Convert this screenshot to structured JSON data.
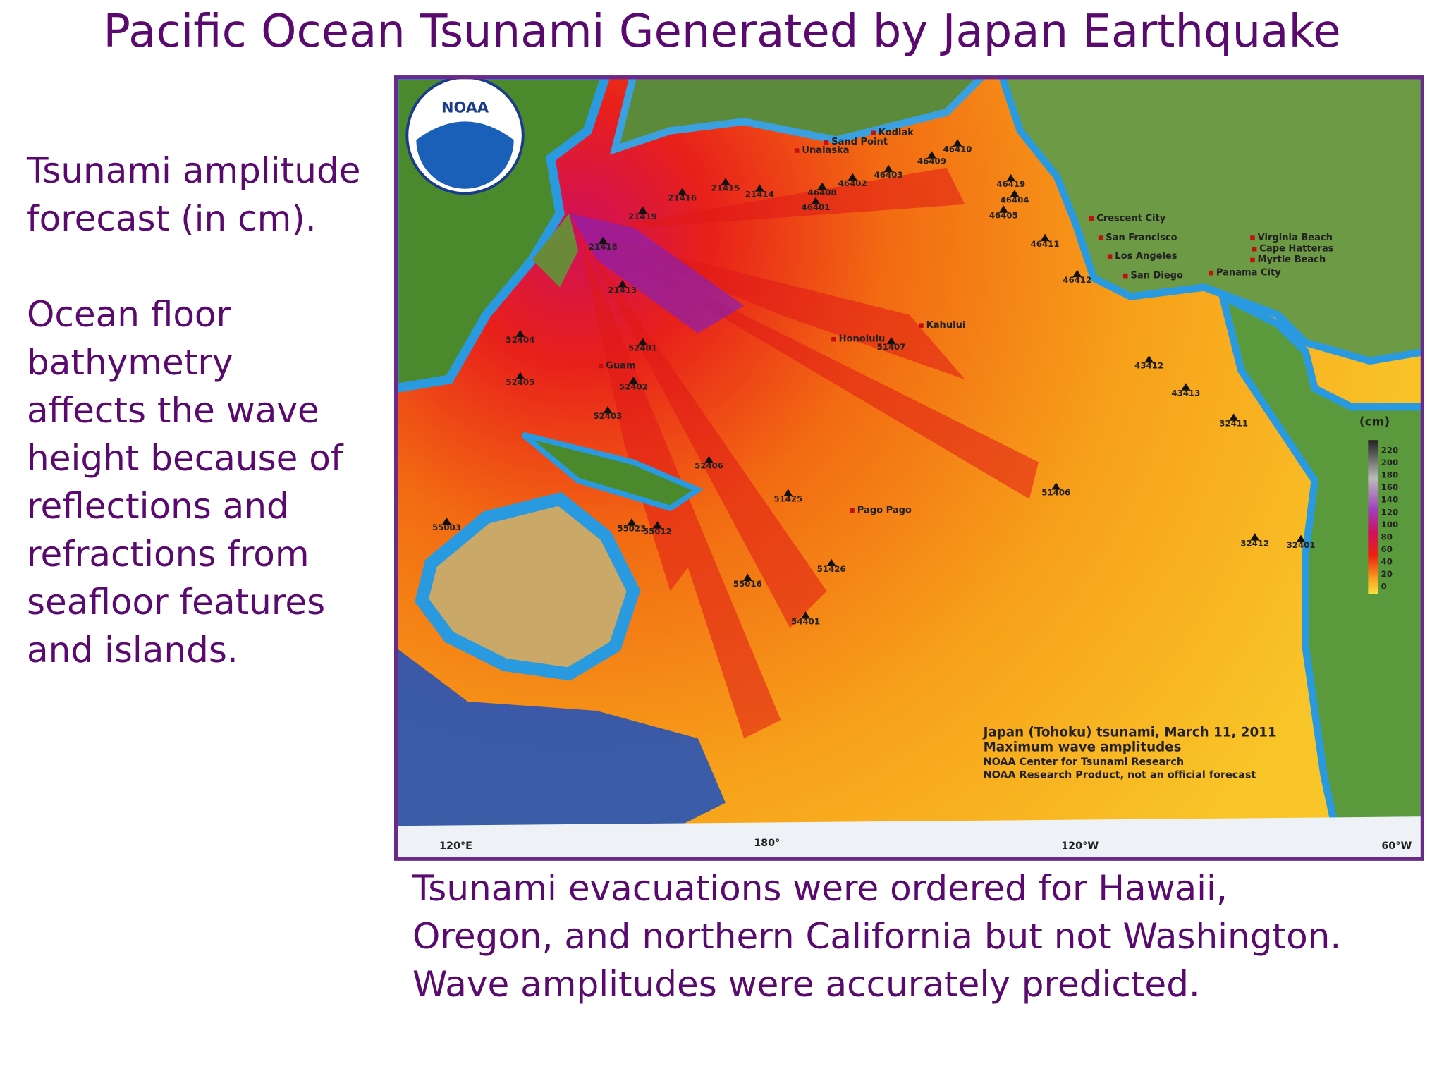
{
  "title": "Pacific Ocean Tsunami Generated by Japan Earthquake",
  "left_text": {
    "intro": [
      "Tsunami amplitude",
      "forecast (in cm)."
    ],
    "body": [
      "Ocean floor",
      "bathymetry",
      "affects the wave",
      "height because of",
      "reflections and",
      "refractions from",
      "seafloor features",
      "and islands."
    ]
  },
  "bottom_text": [
    "Tsunami evacuations were ordered for Hawaii,",
    "Oregon, and northern California but not Washington.",
    "Wave amplitudes were accurately predicted."
  ],
  "map": {
    "logo": "NOAA",
    "stations": [
      "21416",
      "21415",
      "21414",
      "21419",
      "21418",
      "21413",
      "52404",
      "52405",
      "52401",
      "52402",
      "52403",
      "52406",
      "51425",
      "51426",
      "55016",
      "54401",
      "55023",
      "55012",
      "55003",
      "51407",
      "51406",
      "43412",
      "43413",
      "32411",
      "32412",
      "32401",
      "46410",
      "46409",
      "46403",
      "46402",
      "46408",
      "46401",
      "46419",
      "46404",
      "46405",
      "46411",
      "46412"
    ],
    "places": [
      "Guam",
      "Pago Pago",
      "Sand Point",
      "Unalaska",
      "Kodiak",
      "Honolulu",
      "Kahului",
      "Crescent City",
      "San Francisco",
      "Los Angeles",
      "San Diego",
      "Panama City",
      "Virginia Beach",
      "Cape Hatteras",
      "Myrtle Beach"
    ],
    "longitudes": [
      "120°E",
      "180°",
      "120°W",
      "60°W"
    ],
    "legend": {
      "unit": "(cm)",
      "scale": [
        220,
        200,
        180,
        160,
        140,
        120,
        100,
        80,
        60,
        40,
        20,
        0
      ]
    },
    "caption": [
      "Japan (Tohoku) tsunami, March 11, 2011",
      "Maximum wave amplitudes",
      "NOAA Center for Tsunami Research",
      "NOAA Research Product, not an official forecast"
    ]
  }
}
